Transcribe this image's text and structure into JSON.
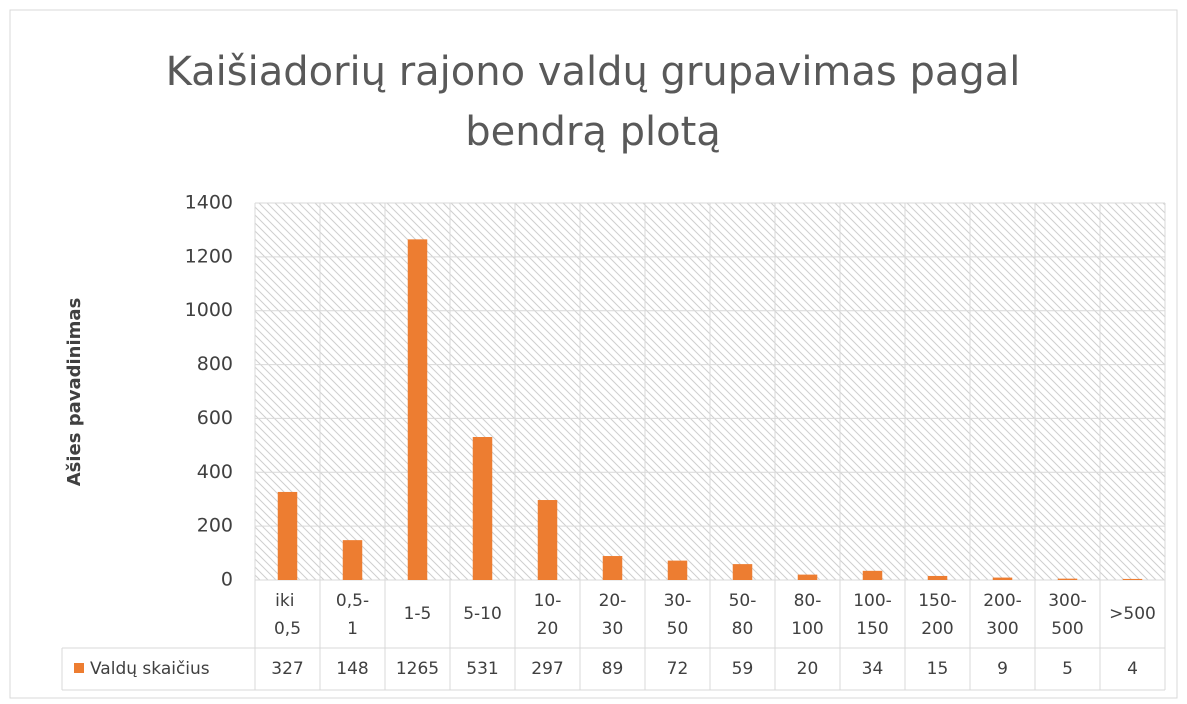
{
  "chart_data": {
    "type": "bar",
    "title": "Kaišiadorių rajono valdų grupavimas pagal bendrą plotą",
    "y_axis_label": "Ašies pavadinimas",
    "categories": [
      "iki 0,5",
      "0,5-1",
      "1-5",
      "5-10",
      "10-20",
      "20-30",
      "30-50",
      "50-80",
      "80-100",
      "100-150",
      "150-200",
      "200-300",
      "300-500",
      ">500"
    ],
    "series": [
      {
        "name": "Valdų skaičius",
        "color": "#ed7d31",
        "values": [
          327,
          148,
          1265,
          531,
          297,
          89,
          72,
          59,
          20,
          34,
          15,
          9,
          5,
          4
        ]
      }
    ],
    "ylim": [
      0,
      1400
    ],
    "yticks": [
      0,
      200,
      400,
      600,
      800,
      1000,
      1200,
      1400
    ],
    "grid": true
  }
}
